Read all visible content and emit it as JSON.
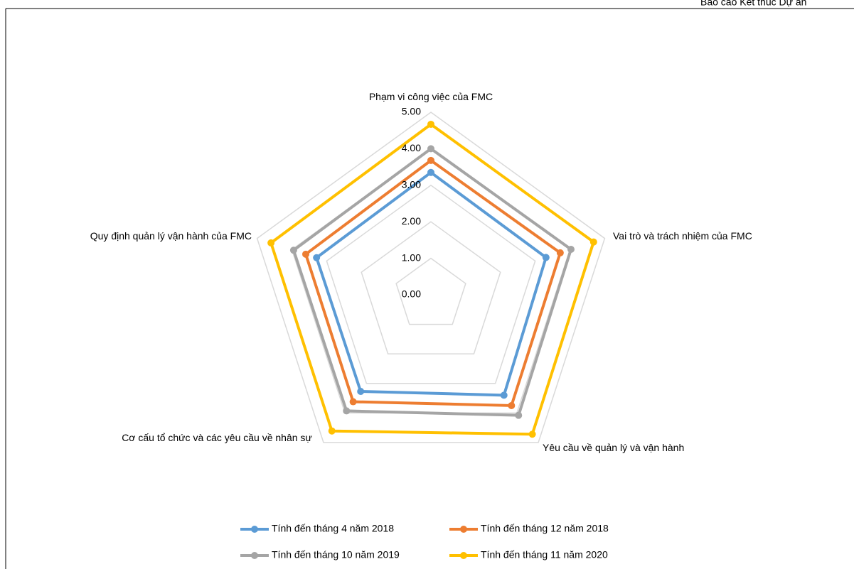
{
  "header": {
    "text": "Báo cáo Kết thúc Dự án"
  },
  "chart_data": {
    "type": "radar",
    "categories": [
      "Phạm vi công việc của FMC",
      "Vai trò và trách nhiệm của FMC",
      "Yêu cầu về quản lý và vận hành",
      "Cơ cấu tổ chức và các yêu cầu về nhân sự",
      "Quy định  quản lý vận hành của  FMC"
    ],
    "series": [
      {
        "name": "Tính đến tháng 4 năm 2018",
        "color": "#5b9bd5",
        "values": [
          3.35,
          3.31,
          3.4,
          3.27,
          3.29
        ]
      },
      {
        "name": "Tính đến tháng 12 năm 2018",
        "color": "#ed7d31",
        "values": [
          3.68,
          3.72,
          3.75,
          3.62,
          3.6
        ]
      },
      {
        "name": "Tính đến tháng 10 năm 2019",
        "color": "#a5a5a5",
        "values": [
          4.0,
          4.03,
          4.08,
          3.93,
          3.95
        ]
      },
      {
        "name": "Tính đến tháng 11 năm 2020",
        "color": "#ffc000",
        "values": [
          4.67,
          4.68,
          4.72,
          4.61,
          4.6
        ]
      }
    ],
    "ylim": [
      0,
      5
    ],
    "yticks": [
      {
        "value": 0,
        "label": "0.00"
      },
      {
        "value": 1,
        "label": "1.00"
      },
      {
        "value": 2,
        "label": "2.00"
      },
      {
        "value": 3,
        "label": "3.00"
      },
      {
        "value": 4,
        "label": "4.00"
      },
      {
        "value": 5,
        "label": "5.00"
      }
    ],
    "grid": true,
    "legend": "bottom"
  }
}
